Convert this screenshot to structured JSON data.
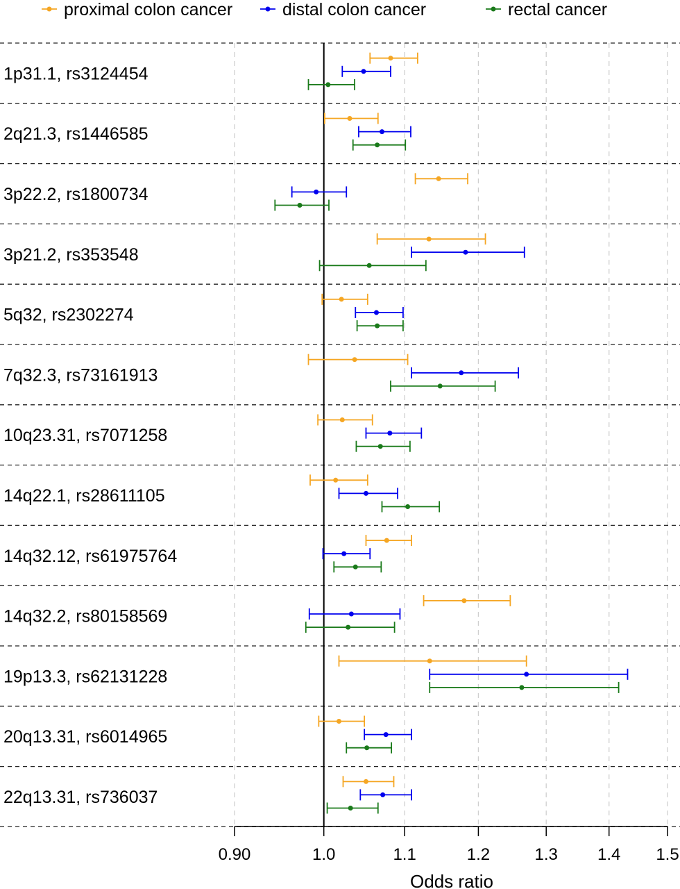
{
  "chart_data": {
    "type": "forest",
    "xlabel": "Odds ratio",
    "xscale": "log",
    "xlim": [
      0.9,
      1.5
    ],
    "xticks": [
      {
        "value": 0.9,
        "label": "0.90"
      },
      {
        "value": 1.0,
        "label": "1.0"
      },
      {
        "value": 1.1,
        "label": "1.1"
      },
      {
        "value": 1.2,
        "label": "1.2"
      },
      {
        "value": 1.3,
        "label": "1.3"
      },
      {
        "value": 1.4,
        "label": "1.4"
      },
      {
        "value": 1.5,
        "label": "1.5"
      }
    ],
    "reference_line": 1.0,
    "grid": "vertical dashed",
    "legend_position": "top",
    "series": [
      {
        "name": "proximal colon cancer",
        "color": "#f5a623"
      },
      {
        "name": "distal colon cancer",
        "color": "#0000ee"
      },
      {
        "name": "rectal cancer",
        "color": "#1a7a1a"
      }
    ],
    "rows": [
      {
        "label": "1p31.1, rs3124454",
        "estimates": [
          {
            "or": 1.082,
            "lo": 1.056,
            "hi": 1.117
          },
          {
            "or": 1.048,
            "lo": 1.022,
            "hi": 1.082
          },
          {
            "or": 1.005,
            "lo": 0.982,
            "hi": 1.037
          }
        ]
      },
      {
        "label": "2q21.3, rs1446585",
        "estimates": [
          {
            "or": 1.031,
            "lo": 1.001,
            "hi": 1.066
          },
          {
            "or": 1.071,
            "lo": 1.042,
            "hi": 1.108
          },
          {
            "or": 1.065,
            "lo": 1.035,
            "hi": 1.101
          }
        ]
      },
      {
        "label": "3p22.2, rs1800734",
        "estimates": [
          {
            "or": 1.145,
            "lo": 1.114,
            "hi": 1.185
          },
          {
            "or": 0.991,
            "lo": 0.963,
            "hi": 1.027
          },
          {
            "or": 0.972,
            "lo": 0.944,
            "hi": 1.006
          }
        ]
      },
      {
        "label": "3p21.2, rs353548",
        "estimates": [
          {
            "or": 1.132,
            "lo": 1.065,
            "hi": 1.21
          },
          {
            "or": 1.182,
            "lo": 1.109,
            "hi": 1.267
          },
          {
            "or": 1.055,
            "lo": 0.995,
            "hi": 1.128
          }
        ]
      },
      {
        "label": "5q32, rs2302274",
        "estimates": [
          {
            "or": 1.021,
            "lo": 0.998,
            "hi": 1.053
          },
          {
            "or": 1.064,
            "lo": 1.038,
            "hi": 1.098
          },
          {
            "or": 1.065,
            "lo": 1.04,
            "hi": 1.098
          }
        ]
      },
      {
        "label": "7q32.3, rs73161913",
        "estimates": [
          {
            "or": 1.037,
            "lo": 0.982,
            "hi": 1.104
          },
          {
            "or": 1.176,
            "lo": 1.109,
            "hi": 1.258
          },
          {
            "or": 1.147,
            "lo": 1.082,
            "hi": 1.224
          }
        ]
      },
      {
        "label": "10q23.31, rs7071258",
        "estimates": [
          {
            "or": 1.022,
            "lo": 0.993,
            "hi": 1.059
          },
          {
            "or": 1.081,
            "lo": 1.051,
            "hi": 1.122
          },
          {
            "or": 1.069,
            "lo": 1.039,
            "hi": 1.107
          }
        ]
      },
      {
        "label": "14q22.1, rs28611105",
        "estimates": [
          {
            "or": 1.014,
            "lo": 0.984,
            "hi": 1.053
          },
          {
            "or": 1.051,
            "lo": 1.018,
            "hi": 1.091
          },
          {
            "or": 1.104,
            "lo": 1.071,
            "hi": 1.146
          }
        ]
      },
      {
        "label": "14q32.12, rs61975764",
        "estimates": [
          {
            "or": 1.077,
            "lo": 1.051,
            "hi": 1.109
          },
          {
            "or": 1.024,
            "lo": 0.999,
            "hi": 1.056
          },
          {
            "or": 1.038,
            "lo": 1.012,
            "hi": 1.07
          }
        ]
      },
      {
        "label": "14q32.2, rs80158569",
        "estimates": [
          {
            "or": 1.18,
            "lo": 1.125,
            "hi": 1.246
          },
          {
            "or": 1.033,
            "lo": 0.983,
            "hi": 1.094
          },
          {
            "or": 1.029,
            "lo": 0.979,
            "hi": 1.087
          }
        ]
      },
      {
        "label": "19p13.3, rs62131228",
        "estimates": [
          {
            "or": 1.133,
            "lo": 1.018,
            "hi": 1.27
          },
          {
            "or": 1.27,
            "lo": 1.133,
            "hi": 1.431
          },
          {
            "or": 1.263,
            "lo": 1.133,
            "hi": 1.416
          }
        ]
      },
      {
        "label": "20q13.31, rs6014965",
        "estimates": [
          {
            "or": 1.018,
            "lo": 0.994,
            "hi": 1.049
          },
          {
            "or": 1.076,
            "lo": 1.049,
            "hi": 1.109
          },
          {
            "or": 1.052,
            "lo": 1.027,
            "hi": 1.083
          }
        ]
      },
      {
        "label": "22q13.31, rs736037",
        "estimates": [
          {
            "or": 1.051,
            "lo": 1.023,
            "hi": 1.086
          },
          {
            "or": 1.072,
            "lo": 1.044,
            "hi": 1.109
          },
          {
            "or": 1.032,
            "lo": 1.004,
            "hi": 1.066
          }
        ]
      }
    ]
  }
}
